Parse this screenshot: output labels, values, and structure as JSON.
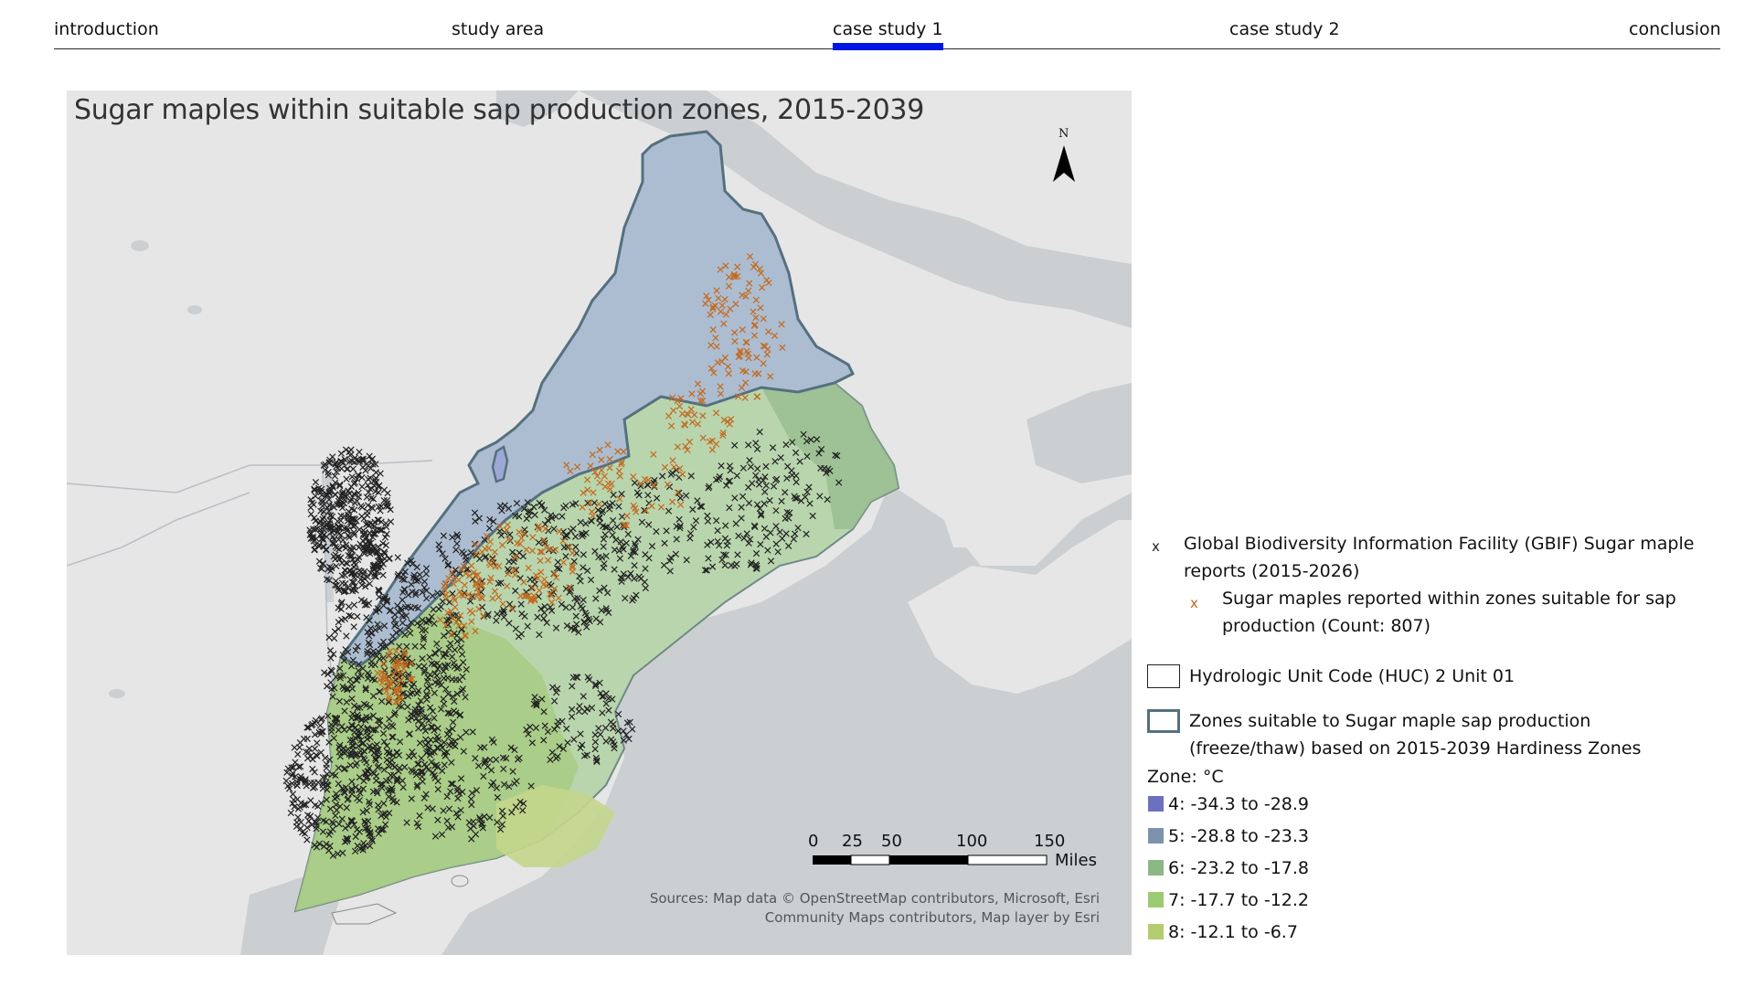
{
  "nav": {
    "tabs": [
      {
        "label": "introduction"
      },
      {
        "label": "study area"
      },
      {
        "label": "case study 1"
      },
      {
        "label": "case study 2"
      },
      {
        "label": "conclusion"
      }
    ],
    "active_index": 2,
    "active_color": "#0016e6"
  },
  "map": {
    "title": "Sugar maples within suitable sap production zones, 2015-2039",
    "north_label": "N",
    "scale": {
      "labels": [
        "0",
        "25",
        "50",
        "100",
        "150"
      ],
      "unit": "Miles"
    },
    "sources": "Sources: Map data © OpenStreetMap contributors, Microsoft, Esri Community Maps contributors, Map layer by Esri",
    "colors": {
      "land": "#e6e6e6",
      "water": "#cbcfd1",
      "zone_outline": "#55707f",
      "gbif_marker": "#222222",
      "suitable_marker": "#c26a1f"
    }
  },
  "legend": {
    "gbif": {
      "symbol": "x",
      "label": "Global Biodiversity Information Facility (GBIF) Sugar maple reports (2015-2026)"
    },
    "suitable": {
      "symbol": "x",
      "label": "Sugar maples reported within zones suitable for sap production (Count: 807)"
    },
    "huc": {
      "label": "Hydrologic Unit Code (HUC) 2 Unit 01"
    },
    "zones_suitable": {
      "label": "Zones suitable to Sugar maple sap production (freeze/thaw) based on 2015-2039 Hardiness Zones"
    },
    "zone_header": "Zone: °C",
    "zones": [
      {
        "label": "4: -34.3 to -28.9",
        "color": "#6d6fc0"
      },
      {
        "label": "5: -28.8 to -23.3",
        "color": "#7d93ad"
      },
      {
        "label": "6: -23.2 to -17.8",
        "color": "#8cb885"
      },
      {
        "label": "7: -17.7 to -12.2",
        "color": "#9ccb74"
      },
      {
        "label": "8: -12.1 to -6.7",
        "color": "#b3cd6e"
      }
    ]
  }
}
